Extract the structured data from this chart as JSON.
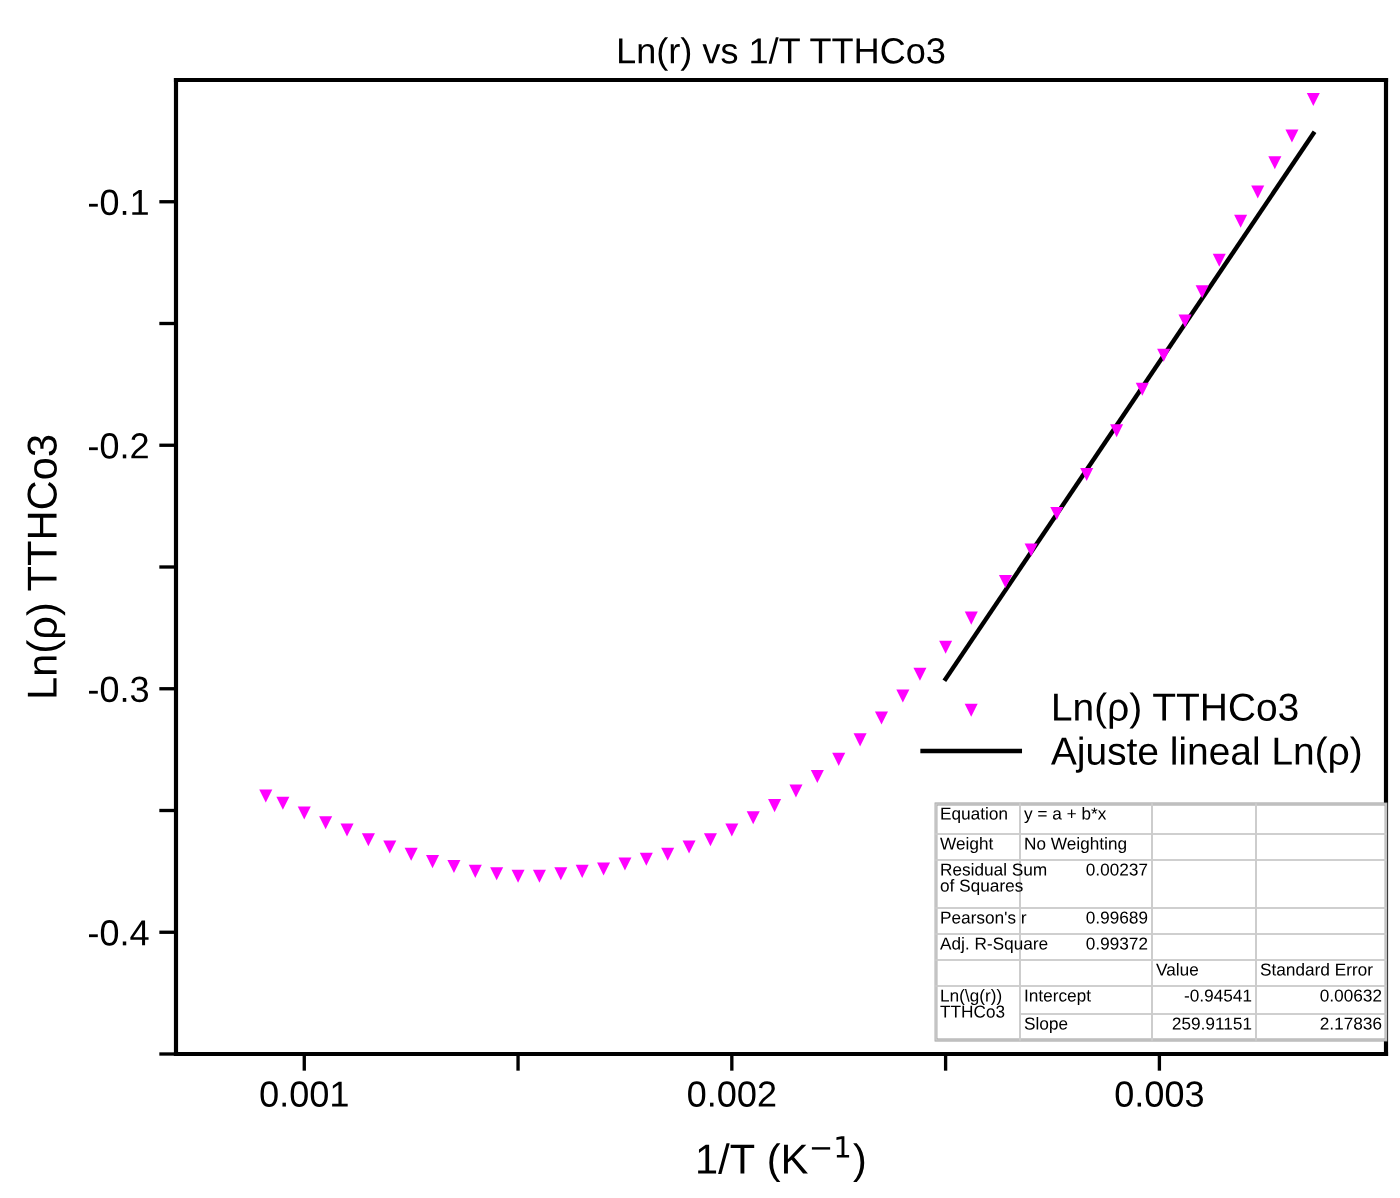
{
  "chart_data": {
    "type": "scatter",
    "title": "Ln(r) vs 1/T TTHCo3",
    "xlabel": "1/T (K$^{−1}$)",
    "ylabel": "Ln(ρ) TTHCo3",
    "xlim": [
      0.0007,
      0.00353
    ],
    "ylim": [
      -0.45,
      -0.05
    ],
    "xticks": [
      0.001,
      {
        "value": 0.0015,
        "label": null
      },
      0.002,
      {
        "value": 0.0025,
        "label": null
      },
      0.003
    ],
    "yticks": [
      {
        "value": -0.45,
        "label": null
      },
      -0.4,
      {
        "value": -0.35,
        "label": null
      },
      -0.3,
      {
        "value": -0.25,
        "label": null
      },
      -0.2,
      {
        "value": -0.15,
        "label": null
      },
      -0.1
    ],
    "grid": false,
    "legend": "bottom right",
    "series": [
      {
        "name": "Ln(ρ) TTHCo3",
        "marker": "triangle",
        "color": "#ff00ff",
        "x": [
          0.00091,
          0.00095,
          0.001,
          0.00105,
          0.0011,
          0.00115,
          0.0012,
          0.00125,
          0.0013,
          0.00135,
          0.0014,
          0.00145,
          0.0015,
          0.00155,
          0.0016,
          0.00165,
          0.0017,
          0.00175,
          0.0018,
          0.00185,
          0.0019,
          0.00195,
          0.002,
          0.00205,
          0.0021,
          0.00215,
          0.0022,
          0.00225,
          0.0023,
          0.00235,
          0.0024,
          0.00244,
          0.0025,
          0.00256,
          0.00264,
          0.0027,
          0.00276,
          0.00283,
          0.0029,
          0.00296,
          0.00301,
          0.00306,
          0.0031,
          0.00314,
          0.00319,
          0.00323,
          0.00327,
          0.00331,
          0.00336
        ],
        "values": [
          -0.344,
          -0.347,
          -0.351,
          -0.355,
          -0.358,
          -0.362,
          -0.365,
          -0.368,
          -0.371,
          -0.373,
          -0.375,
          -0.376,
          -0.377,
          -0.377,
          -0.376,
          -0.375,
          -0.374,
          -0.372,
          -0.37,
          -0.368,
          -0.365,
          -0.362,
          -0.358,
          -0.353,
          -0.348,
          -0.342,
          -0.336,
          -0.329,
          -0.321,
          -0.312,
          -0.303,
          -0.294,
          -0.283,
          -0.271,
          -0.256,
          -0.243,
          -0.228,
          -0.212,
          -0.194,
          -0.177,
          -0.163,
          -0.149,
          -0.137,
          -0.124,
          -0.108,
          -0.096,
          -0.084,
          -0.073,
          -0.058
        ]
      },
      {
        "name": "Ajuste lineal Ln(ρ)",
        "type": "line",
        "color": "#000000",
        "line_style": "solid",
        "marker": "none",
        "x": [
          0.0025,
          0.00336
        ],
        "values": [
          -0.296,
          -0.072
        ]
      }
    ],
    "annotations": [
      "Equation",
      "y = a + b*x",
      "Weight",
      "No Weighting",
      "Residual Sum\nof Squares",
      "0.00237",
      "Pearson's r",
      "0.99689",
      "Adj. R-Square",
      "0.99372",
      "Value",
      "Standard Error",
      "Ln(\\g(r))\nTTHCo3",
      "Intercept",
      "-0.94541",
      "0.00632",
      "Slope",
      "259.91151",
      "2.17836"
    ]
  }
}
